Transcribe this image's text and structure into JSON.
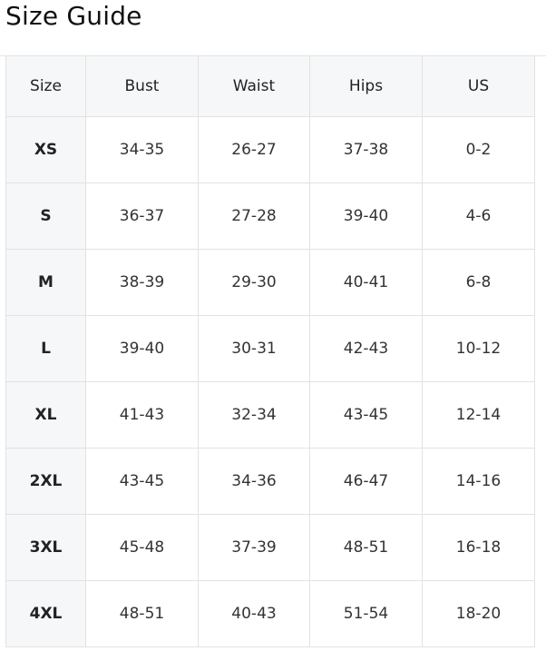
{
  "title": "Size Guide",
  "table": {
    "headers": [
      "Size",
      "Bust",
      "Waist",
      "Hips",
      "US"
    ],
    "rows": [
      [
        "XS",
        "34-35",
        "26-27",
        "37-38",
        "0-2"
      ],
      [
        "S",
        "36-37",
        "27-28",
        "39-40",
        "4-6"
      ],
      [
        "M",
        "38-39",
        "29-30",
        "40-41",
        "6-8"
      ],
      [
        "L",
        "39-40",
        "30-31",
        "42-43",
        "10-12"
      ],
      [
        "XL",
        "41-43",
        "32-34",
        "43-45",
        "12-14"
      ],
      [
        "2XL",
        "43-45",
        "34-36",
        "46-47",
        "14-16"
      ],
      [
        "3XL",
        "45-48",
        "37-39",
        "48-51",
        "16-18"
      ],
      [
        "4XL",
        "48-51",
        "40-43",
        "51-54",
        "18-20"
      ]
    ]
  },
  "colors": {
    "header_bg": "#f6f7f9",
    "border": "#e2e2e2"
  }
}
